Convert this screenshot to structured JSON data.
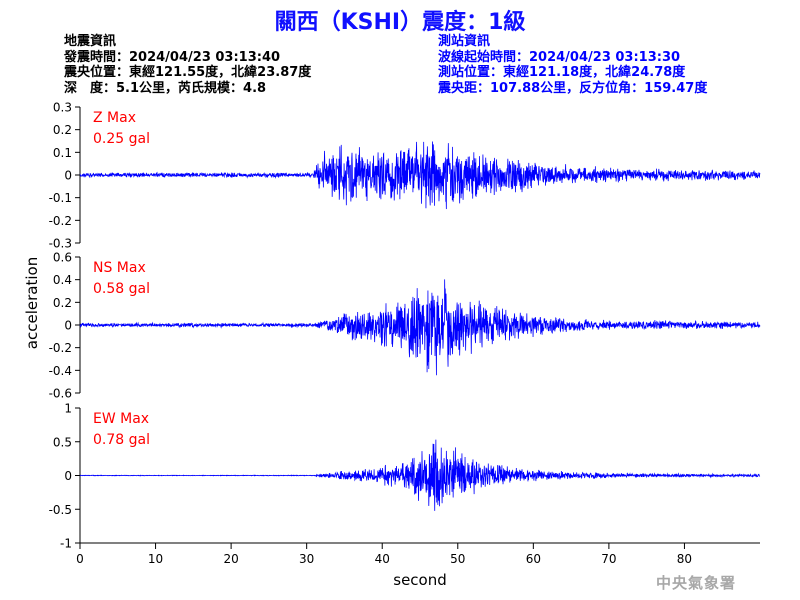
{
  "title": "關西（KSHI）震度：1級",
  "quake_info": {
    "heading": "地震資訊",
    "time": "發震時間：2024/04/23 03:13:40",
    "location": "震央位置：東經121.55度，北緯23.87度",
    "depth_magnitude": "深　度：5.1公里，芮氏規模：4.8"
  },
  "station_info": {
    "heading": "測站資訊",
    "wave_start": "波線起始時間：2024/04/23 03:13:30",
    "location": "測站位置：東經121.18度，北緯24.78度",
    "distance_azimuth": "震央距：107.88公里，反方位角：159.47度"
  },
  "footer": "中央氣象署",
  "colors": {
    "trace": "#0000ff",
    "max_label": "#ff0000",
    "title": "#1010ff",
    "station_text": "#0000ff",
    "footer": "#a8a8a8"
  },
  "chart_data": {
    "type": "line",
    "xlabel": "second",
    "ylabel": "acceleration",
    "xlim": [
      0,
      90
    ],
    "x_ticks": [
      0,
      10,
      20,
      30,
      40,
      50,
      60,
      70,
      80
    ],
    "grid": false,
    "panels": [
      {
        "name": "Z",
        "max_label": "Z Max",
        "max_value": "0.25 gal",
        "ylim": [
          -0.3,
          0.3
        ],
        "y_ticks": [
          0.3,
          0.2,
          0.1,
          0,
          -0.1,
          -0.2,
          -0.3
        ],
        "y_tick_labels": [
          "0.3",
          "0.2",
          "0.1",
          "0",
          "-0.1",
          "-0.2",
          "-0.3"
        ],
        "envelope": [
          [
            0,
            0.012
          ],
          [
            30.8,
            0.012
          ],
          [
            31.5,
            0.07
          ],
          [
            32.5,
            0.12
          ],
          [
            34,
            0.17
          ],
          [
            36,
            0.16
          ],
          [
            38,
            0.13
          ],
          [
            41,
            0.14
          ],
          [
            44,
            0.16
          ],
          [
            47,
            0.19
          ],
          [
            50,
            0.16
          ],
          [
            53,
            0.12
          ],
          [
            56,
            0.09
          ],
          [
            60,
            0.07
          ],
          [
            65,
            0.05
          ],
          [
            70,
            0.035
          ],
          [
            80,
            0.028
          ],
          [
            90,
            0.025
          ]
        ]
      },
      {
        "name": "NS",
        "max_label": "NS Max",
        "max_value": "0.58 gal",
        "ylim": [
          -0.6,
          0.6
        ],
        "y_ticks": [
          0.6,
          0.4,
          0.2,
          0,
          -0.2,
          -0.4,
          -0.6
        ],
        "y_tick_labels": [
          "0.6",
          "0.4",
          "0.2",
          "0",
          "-0.2",
          "-0.4",
          "-0.6"
        ],
        "envelope": [
          [
            0,
            0.02
          ],
          [
            31,
            0.02
          ],
          [
            32,
            0.05
          ],
          [
            34,
            0.1
          ],
          [
            37,
            0.16
          ],
          [
            40,
            0.22
          ],
          [
            42,
            0.3
          ],
          [
            44,
            0.42
          ],
          [
            46,
            0.52
          ],
          [
            47,
            0.55
          ],
          [
            49,
            0.38
          ],
          [
            52,
            0.26
          ],
          [
            56,
            0.18
          ],
          [
            60,
            0.12
          ],
          [
            65,
            0.07
          ],
          [
            70,
            0.05
          ],
          [
            80,
            0.04
          ],
          [
            90,
            0.035
          ]
        ]
      },
      {
        "name": "EW",
        "max_label": "EW Max",
        "max_value": "0.78 gal",
        "ylim": [
          -1,
          1
        ],
        "y_ticks": [
          1,
          0.5,
          0,
          -0.5,
          -1
        ],
        "y_tick_labels": [
          "1",
          "0.5",
          "0",
          "-0.5",
          "-1"
        ],
        "envelope": [
          [
            0,
            0.005
          ],
          [
            31,
            0.006
          ],
          [
            32,
            0.03
          ],
          [
            35,
            0.09
          ],
          [
            38,
            0.13
          ],
          [
            42,
            0.18
          ],
          [
            44,
            0.35
          ],
          [
            46,
            0.55
          ],
          [
            47,
            0.6
          ],
          [
            49,
            0.48
          ],
          [
            52,
            0.3
          ],
          [
            55,
            0.2
          ],
          [
            58,
            0.13
          ],
          [
            62,
            0.08
          ],
          [
            66,
            0.06
          ],
          [
            72,
            0.04
          ],
          [
            80,
            0.03
          ],
          [
            90,
            0.025
          ]
        ]
      }
    ]
  }
}
